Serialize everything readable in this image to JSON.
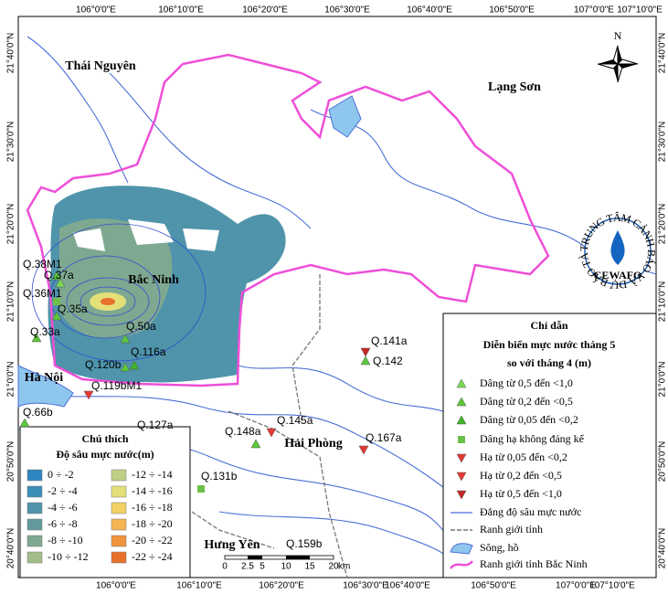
{
  "map": {
    "lon_labels": [
      "106°0'0\"E",
      "106°10'0\"E",
      "106°20'0\"E",
      "106°30'0\"E",
      "106°40'0\"E",
      "106°50'0\"E",
      "107°0'0\"E",
      "107°10'0\"E"
    ],
    "lat_labels": [
      "21°40'0\"N",
      "21°30'0\"N",
      "21°20'0\"N",
      "21°10'0\"N",
      "21°0'0\"N",
      "20°50'0\"N",
      "20°40'0\"N"
    ],
    "provinces": [
      "Thái Nguyên",
      "Lạng Sơn",
      "Bắc Ninh",
      "Hà Nội",
      "Hải Phòng",
      "Hưng Yên"
    ],
    "stations": [
      "Q.38M1",
      "Q.37a",
      "Q.36M1",
      "Q.35a",
      "Q.33a",
      "Q.50a",
      "Q.116a",
      "Q.120b",
      "Q.119bM1",
      "Q.66b",
      "Q.127a",
      "Q.148a",
      "Q.145a",
      "Q.167a",
      "Q.141a",
      "Q.142",
      "Q.131b",
      "Q.159b"
    ],
    "north": "N",
    "logo": {
      "ring": "TRUNG TÂM CẢNH BÁO VÀ DỰ BÁO TÀI NGUYÊN NƯỚC",
      "short": "CEWAFO"
    },
    "scale_bar": {
      "ticks": [
        "0",
        "2.5",
        "5",
        "10",
        "15",
        "20"
      ],
      "unit": "km"
    },
    "depth_legend": {
      "title": "Chú thích",
      "subtitle": "Độ sâu mực nước(m)",
      "classes": [
        {
          "label": "0 ÷ -2",
          "color": "#2e86c1"
        },
        {
          "label": "-2 ÷ -4",
          "color": "#3c8fb8"
        },
        {
          "label": "-4 ÷ -6",
          "color": "#4f94aa"
        },
        {
          "label": "-6 ÷ -8",
          "color": "#64999d"
        },
        {
          "label": "-8 ÷ -10",
          "color": "#7fa890"
        },
        {
          "label": "-10 ÷ -12",
          "color": "#a3bd88"
        },
        {
          "label": "-12 ÷ -14",
          "color": "#bfcf86"
        },
        {
          "label": "-14 ÷ -16",
          "color": "#e3e07a"
        },
        {
          "label": "-16 ÷ -18",
          "color": "#f2d264"
        },
        {
          "label": "-18 ÷ -20",
          "color": "#f4b552"
        },
        {
          "label": "-20 ÷ -22",
          "color": "#f0953e"
        },
        {
          "label": "-22 ÷ -24",
          "color": "#e9702b"
        }
      ]
    },
    "guide": {
      "title": "Chỉ dẫn",
      "subtitle_1": "Diễn biến mực nước tháng 5",
      "subtitle_2": "so với tháng 4 (m)",
      "items": [
        "Dâng từ 0,5 đến <1,0",
        "Dâng từ 0,2 đến <0,5",
        "Dâng từ 0,05 đến <0,2",
        "Dâng hạ không đáng kể",
        "Hạ từ 0,05 đến <0,2",
        "Hạ từ 0,2 đến <0,5",
        "Hạ từ 0,5 đến <1,0",
        "Đẳng độ sâu mực nước",
        "Ranh giới tỉnh",
        "Sông, hồ",
        "Ranh giới tỉnh Bắc Ninh"
      ]
    }
  }
}
